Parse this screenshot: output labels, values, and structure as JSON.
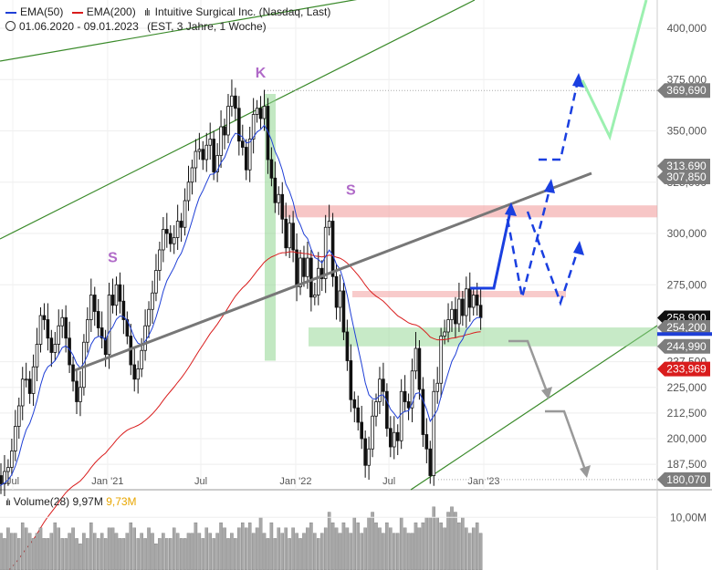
{
  "legend": {
    "ema50": {
      "label": "EMA(50)",
      "color": "#1f3fd6"
    },
    "ema200": {
      "label": "EMA(200)",
      "color": "#d91c1c"
    },
    "instrument": "Intuitive Surgical Inc. (Nasdaq, Last)",
    "period": "01.06.2020 - 09.01.2023",
    "period_info": "(EST, 3 Jahre, 1 Woche)"
  },
  "volume_header": {
    "label": "Volume(28)",
    "value1": "9,97M",
    "value2": "9,73M",
    "value2_color": "#e8a600"
  },
  "chart_data": {
    "type": "candlestick",
    "x_ticks": [
      {
        "label": "Jul",
        "date": "2020-07"
      },
      {
        "label": "Jan '21",
        "date": "2021-01"
      },
      {
        "label": "Jul",
        "date": "2021-07"
      },
      {
        "label": "Jan '22",
        "date": "2022-01"
      },
      {
        "label": "Jul",
        "date": "2022-07"
      },
      {
        "label": "Jan '23",
        "date": "2023-01"
      }
    ],
    "y_ticks": [
      "400,000",
      "375,000",
      "350,000",
      "325,000",
      "300,000",
      "275,000",
      "237,500",
      "225,000",
      "212,500",
      "200,000",
      "187,500"
    ],
    "y_tick_values": [
      400,
      375,
      350,
      325,
      300,
      275,
      237.5,
      225,
      212.5,
      200,
      187.5
    ],
    "ylim": [
      176,
      410
    ],
    "price_tags": [
      {
        "label": "369,690",
        "value": 369.69,
        "style": "gray"
      },
      {
        "label": "313,690",
        "value": 313.69,
        "style": "gray"
      },
      {
        "label": "307,850",
        "value": 307.85,
        "style": "gray"
      },
      {
        "label": "258,900",
        "value": 258.9,
        "style": "black"
      },
      {
        "label": "254,200",
        "value": 254.2,
        "style": "gray"
      },
      {
        "label": "244,990",
        "value": 244.99,
        "style": "gray"
      },
      {
        "label": "233,969",
        "value": 233.969,
        "style": "red"
      },
      {
        "label": "180,070",
        "value": 180.07,
        "style": "gray"
      }
    ],
    "annotations": [
      {
        "text": "K",
        "date": "2021-10-25",
        "value": 376
      },
      {
        "text": "S",
        "date": "2021-01-11",
        "value": 286
      },
      {
        "text": "S",
        "date": "2022-04-18",
        "value": 319
      }
    ],
    "weekly_close": [
      182,
      178,
      184,
      186,
      194,
      206,
      216,
      229,
      229,
      222,
      235,
      246,
      260,
      258,
      249,
      242,
      246,
      255,
      259,
      249,
      236,
      228,
      218,
      225,
      247,
      258,
      270,
      262,
      254,
      249,
      241,
      270,
      265,
      275,
      267,
      258,
      250,
      236,
      229,
      234,
      243,
      255,
      263,
      271,
      282,
      292,
      302,
      300,
      295,
      298,
      306,
      303,
      316,
      325,
      332,
      340,
      341,
      336,
      343,
      346,
      330,
      338,
      352,
      348,
      362,
      367,
      361,
      345,
      342,
      331,
      346,
      358,
      361,
      356,
      362,
      336,
      327,
      315,
      319,
      307,
      293,
      305,
      292,
      274,
      288,
      279,
      288,
      269,
      270,
      283,
      278,
      303,
      306,
      279,
      264,
      272,
      252,
      238,
      219,
      215,
      208,
      200,
      187,
      195,
      211,
      218,
      229,
      223,
      205,
      196,
      203,
      199,
      223,
      218,
      215,
      233,
      244,
      224,
      202,
      195,
      182,
      223,
      227,
      250,
      252,
      258,
      263,
      256,
      268,
      260,
      273,
      264,
      270,
      265,
      259
    ],
    "ema50_start": 176,
    "ema200_start": 130,
    "volume_ylabel": "10,00M",
    "volume_ylabel_value": 10,
    "volume_weeks": [
      5,
      7,
      6,
      8,
      7,
      7,
      6,
      9,
      8,
      7,
      6,
      7,
      8,
      6,
      6,
      7,
      9,
      8,
      6,
      6,
      7,
      8,
      6,
      5,
      7,
      6,
      9,
      7,
      6,
      7,
      6,
      8,
      8,
      7,
      6,
      6,
      7,
      9,
      8,
      6,
      7,
      6,
      8,
      7,
      5,
      6,
      7,
      6,
      6,
      8,
      7,
      6,
      6,
      7,
      7,
      9,
      7,
      6,
      8,
      7,
      6,
      7,
      9,
      8,
      6,
      7,
      6,
      8,
      9,
      8,
      9,
      7,
      8,
      10,
      7,
      6,
      9,
      6,
      8,
      7,
      8,
      6,
      8,
      7,
      6,
      7,
      8,
      9,
      7,
      6,
      7,
      8,
      11,
      9,
      8,
      7,
      9,
      8,
      7,
      10,
      9,
      7,
      8,
      10,
      11,
      9,
      8,
      7,
      9,
      8,
      7,
      7,
      10,
      8,
      7,
      7,
      9,
      8,
      9,
      10,
      10,
      12,
      10,
      9,
      8,
      11,
      12,
      11,
      9,
      10,
      8,
      7,
      8,
      9,
      7
    ]
  }
}
